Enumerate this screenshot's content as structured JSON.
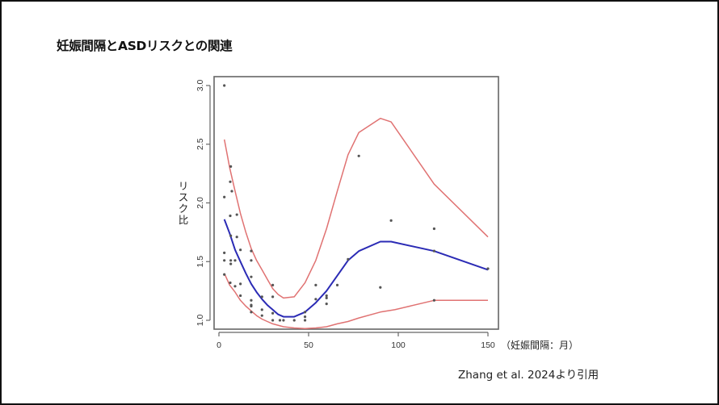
{
  "slide": {
    "title": "妊娠間隔とASDリスクとの関連",
    "citation": "Zhang et al. 2024より引用"
  },
  "colors": {
    "ci_band": "#e07272",
    "estimate": "#2b2bb5",
    "points": "#555555",
    "axis": "#666666"
  },
  "chart_data": {
    "type": "line",
    "title": "妊娠間隔とASDリスクとの関連",
    "xlabel": "（妊娠間隔：月）",
    "ylabel": "リスク比",
    "xlim": [
      0,
      150
    ],
    "ylim": [
      1.0,
      3.0
    ],
    "xticks": [
      0,
      50,
      100,
      150
    ],
    "xtick_labels": [
      "0",
      "50",
      "100",
      "150"
    ],
    "yticks": [
      1.0,
      1.5,
      2.0,
      2.5,
      3.0
    ],
    "ytick_labels": [
      "1.0",
      "1.5",
      "2.0",
      "2.5",
      "3.0"
    ],
    "grid": false,
    "legend": null,
    "series": [
      {
        "name": "estimate",
        "style": "line",
        "color": "#2b2bb5",
        "x": [
          3,
          6,
          9,
          12,
          15,
          18,
          21,
          24,
          27,
          30,
          33,
          36,
          42,
          48,
          54,
          60,
          66,
          72,
          78,
          90,
          96,
          120,
          150
        ],
        "y": [
          1.86,
          1.74,
          1.6,
          1.5,
          1.4,
          1.31,
          1.24,
          1.18,
          1.13,
          1.09,
          1.05,
          1.03,
          1.03,
          1.07,
          1.15,
          1.25,
          1.38,
          1.51,
          1.59,
          1.67,
          1.67,
          1.59,
          1.43
        ]
      },
      {
        "name": "upper_ci",
        "style": "line",
        "color": "#e07272",
        "x": [
          3,
          6,
          9,
          12,
          15,
          18,
          21,
          24,
          27,
          30,
          33,
          36,
          42,
          48,
          54,
          60,
          66,
          72,
          78,
          90,
          96,
          120,
          150
        ],
        "y": [
          2.54,
          2.3,
          2.1,
          1.91,
          1.75,
          1.61,
          1.51,
          1.43,
          1.35,
          1.27,
          1.22,
          1.19,
          1.2,
          1.32,
          1.51,
          1.78,
          2.1,
          2.41,
          2.6,
          2.72,
          2.69,
          2.16,
          1.71
        ]
      },
      {
        "name": "lower_ci",
        "style": "line",
        "color": "#e07272",
        "x": [
          3,
          6,
          9,
          12,
          15,
          18,
          21,
          24,
          27,
          30,
          36,
          42,
          48,
          54,
          60,
          66,
          72,
          78,
          90,
          98,
          120,
          135,
          150
        ],
        "y": [
          1.4,
          1.3,
          1.24,
          1.17,
          1.12,
          1.08,
          1.04,
          1.01,
          0.99,
          0.97,
          0.945,
          0.935,
          0.93,
          0.935,
          0.945,
          0.97,
          0.99,
          1.02,
          1.07,
          1.09,
          1.17,
          1.17,
          1.17
        ]
      },
      {
        "name": "observed",
        "style": "scatter",
        "color": "#555555",
        "x": [
          3,
          3,
          6.6,
          6.3,
          7.2,
          6.3,
          10,
          6.6,
          10,
          3,
          12,
          18,
          3,
          6.6,
          6.6,
          9,
          18,
          3,
          18,
          6.3,
          12,
          9,
          30,
          12,
          24,
          30,
          18,
          18,
          18,
          18,
          24,
          24,
          30,
          30,
          34,
          36,
          42,
          48,
          48,
          48,
          54,
          54,
          60,
          60,
          60,
          66,
          72,
          78,
          90,
          96,
          120,
          120,
          120,
          150
        ],
        "y": [
          3.0,
          2.05,
          2.31,
          2.18,
          2.1,
          1.89,
          1.9,
          1.72,
          1.71,
          1.575,
          1.6,
          1.59,
          1.51,
          1.51,
          1.48,
          1.51,
          1.51,
          1.39,
          1.37,
          1.32,
          1.31,
          1.29,
          1.3,
          1.21,
          1.2,
          1.2,
          1.17,
          1.13,
          1.12,
          1.07,
          1.09,
          1.04,
          1.06,
          1.0,
          1.0,
          1.0,
          1.0,
          1.07,
          1.03,
          1.0,
          1.3,
          1.18,
          1.21,
          1.19,
          1.14,
          1.3,
          1.52,
          2.4,
          1.28,
          1.85,
          1.78,
          1.59,
          1.17,
          1.44
        ]
      }
    ]
  }
}
